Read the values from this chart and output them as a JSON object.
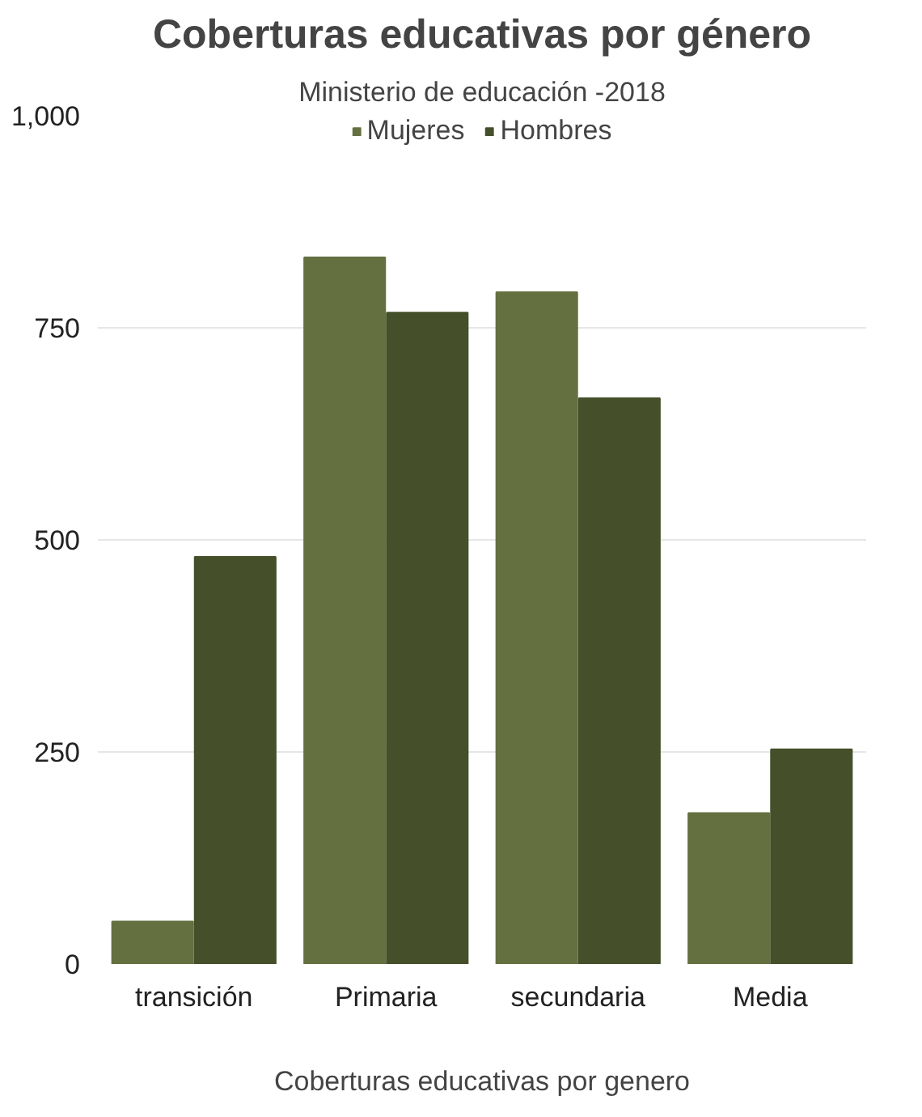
{
  "chart_data": {
    "type": "bar",
    "title": "Coberturas educativas por género",
    "subtitle": "Ministerio de educación -2018",
    "xlabel": "Coberturas educativas por genero",
    "categories": [
      "transición",
      "Primaria",
      "secundaria",
      "Media"
    ],
    "series": [
      {
        "name": "Mujeres",
        "color": "#647040",
        "values": [
          50,
          833,
          792,
          178
        ]
      },
      {
        "name": "Hombres",
        "color": "#45502a",
        "values": [
          480,
          768,
          667,
          253
        ]
      }
    ],
    "ylim": [
      0,
      1000
    ],
    "yticks": [
      0,
      {
        "value": 250,
        "label": "250"
      },
      {
        "value": 500,
        "label": "500"
      },
      {
        "value": 750,
        "label": "750"
      },
      {
        "value": 1000,
        "label": "1,000"
      }
    ],
    "grid": "y",
    "legend": "top"
  }
}
